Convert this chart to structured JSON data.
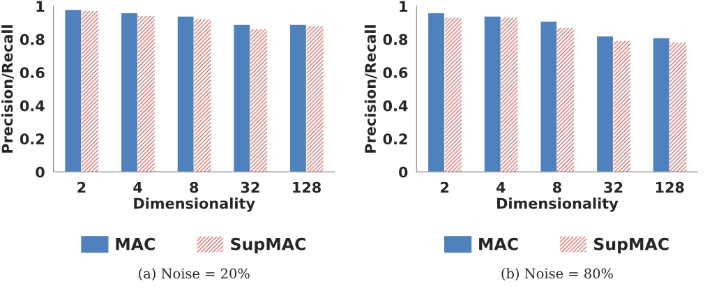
{
  "chart_data": [
    {
      "type": "bar",
      "title": "(a) Noise = 20%",
      "xlabel": "Dimensionality",
      "ylabel": "Precision/Recall",
      "categories": [
        "2",
        "4",
        "8",
        "32",
        "128"
      ],
      "series": [
        {
          "name": "MAC",
          "color": "#4f81bd",
          "values": [
            0.98,
            0.96,
            0.94,
            0.89,
            0.89
          ]
        },
        {
          "name": "SupMAC",
          "color": "#c0504d",
          "values": [
            0.97,
            0.94,
            0.92,
            0.86,
            0.88
          ]
        }
      ],
      "ylim": [
        0,
        1
      ],
      "yticks": [
        0,
        0.2,
        0.4,
        0.6,
        0.8,
        1
      ],
      "grid": false,
      "legend": "bottom"
    },
    {
      "type": "bar",
      "title": "(b) Noise = 80%",
      "xlabel": "Dimensionality",
      "ylabel": "Precision/Recall",
      "categories": [
        "2",
        "4",
        "8",
        "32",
        "128"
      ],
      "series": [
        {
          "name": "MAC",
          "color": "#4f81bd",
          "values": [
            0.96,
            0.94,
            0.91,
            0.82,
            0.81
          ]
        },
        {
          "name": "SupMAC",
          "color": "#c0504d",
          "values": [
            0.93,
            0.93,
            0.87,
            0.79,
            0.78
          ]
        }
      ],
      "ylim": [
        0,
        1
      ],
      "yticks": [
        0,
        0.2,
        0.4,
        0.6,
        0.8,
        1
      ],
      "grid": false,
      "legend": "bottom"
    }
  ]
}
